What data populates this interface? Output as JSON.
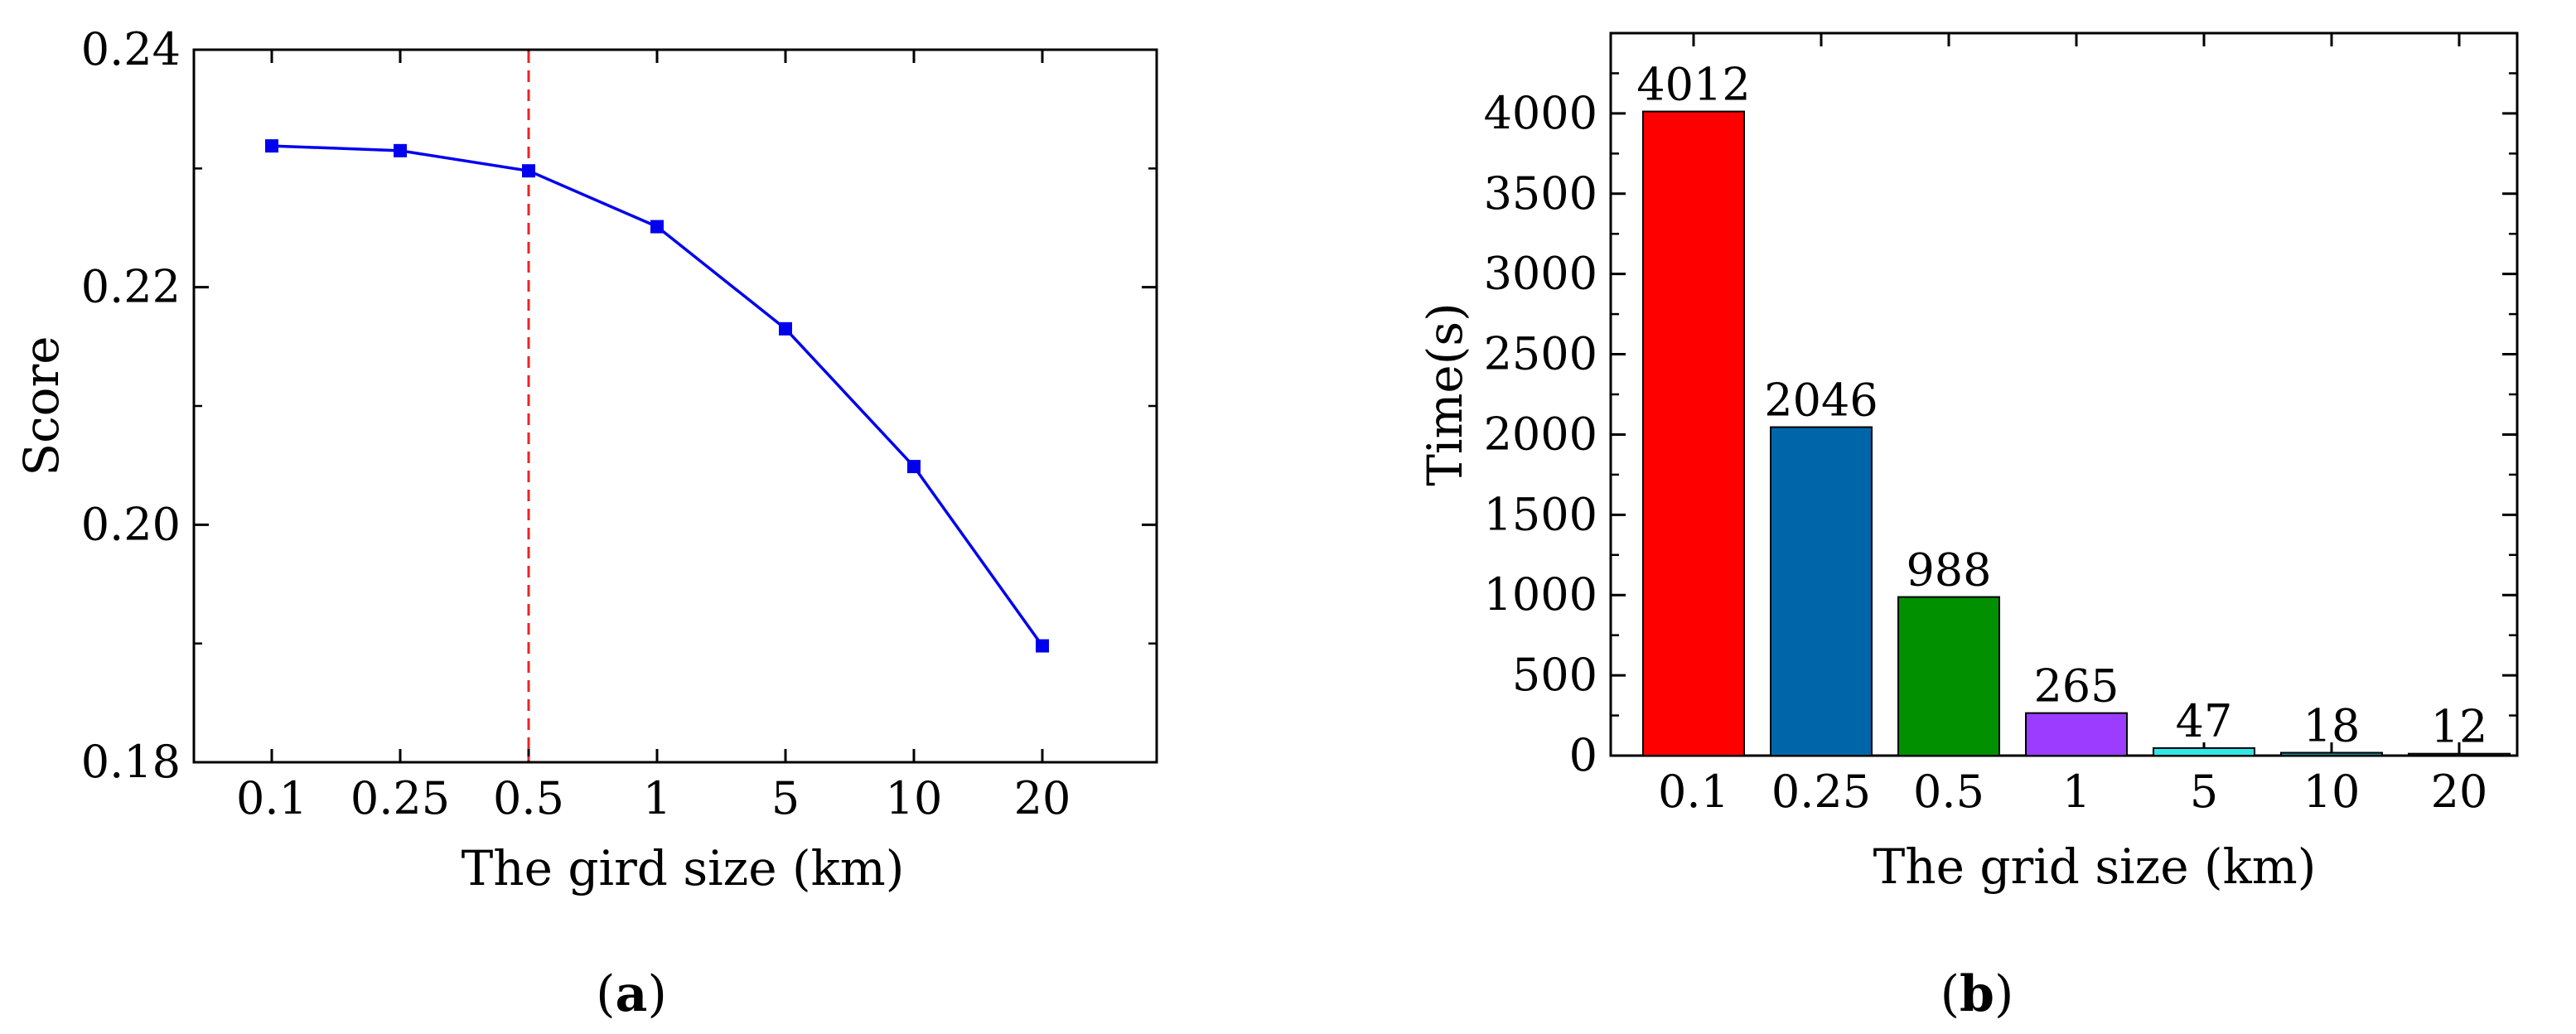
{
  "chart_data": [
    {
      "panel": "a",
      "type": "line",
      "categories": [
        "0.1",
        "0.25",
        "0.5",
        "1",
        "5",
        "10",
        "20"
      ],
      "series": [
        {
          "name": "Score",
          "color": "#0000ee",
          "marker": "square",
          "values": [
            0.2319,
            0.2315,
            0.2298,
            0.2251,
            0.2165,
            0.2049,
            0.1898
          ]
        }
      ],
      "xlabel": "The gird size (km)",
      "ylabel": "Score",
      "ylim": [
        0.18,
        0.24
      ],
      "yticks": [
        "0.18",
        "0.20",
        "0.22",
        "0.24"
      ],
      "reference_line": {
        "category": "0.5",
        "color": "#ee2222",
        "style": "dashed"
      },
      "caption": {
        "open": "(",
        "letter": "a",
        "close": ")"
      }
    },
    {
      "panel": "b",
      "type": "bar",
      "categories": [
        "0.1",
        "0.25",
        "0.5",
        "1",
        "5",
        "10",
        "20"
      ],
      "values": [
        4012,
        2046,
        988,
        265,
        47,
        18,
        12
      ],
      "data_labels": [
        "4012",
        "2046",
        "988",
        "265",
        "47",
        "18",
        "12"
      ],
      "colors": [
        "#ff0000",
        "#0066aa",
        "#009000",
        "#9b3cff",
        "#30e8e8",
        "#1a8a9a",
        "#333333"
      ],
      "xlabel": "The grid size (km)",
      "ylabel": "Time(s)",
      "ylim": [
        0,
        4500
      ],
      "yticks": [
        "0",
        "500",
        "1000",
        "1500",
        "2000",
        "2500",
        "3000",
        "3500",
        "4000"
      ],
      "caption": {
        "open": "(",
        "letter": "b",
        "close": ")"
      }
    }
  ]
}
